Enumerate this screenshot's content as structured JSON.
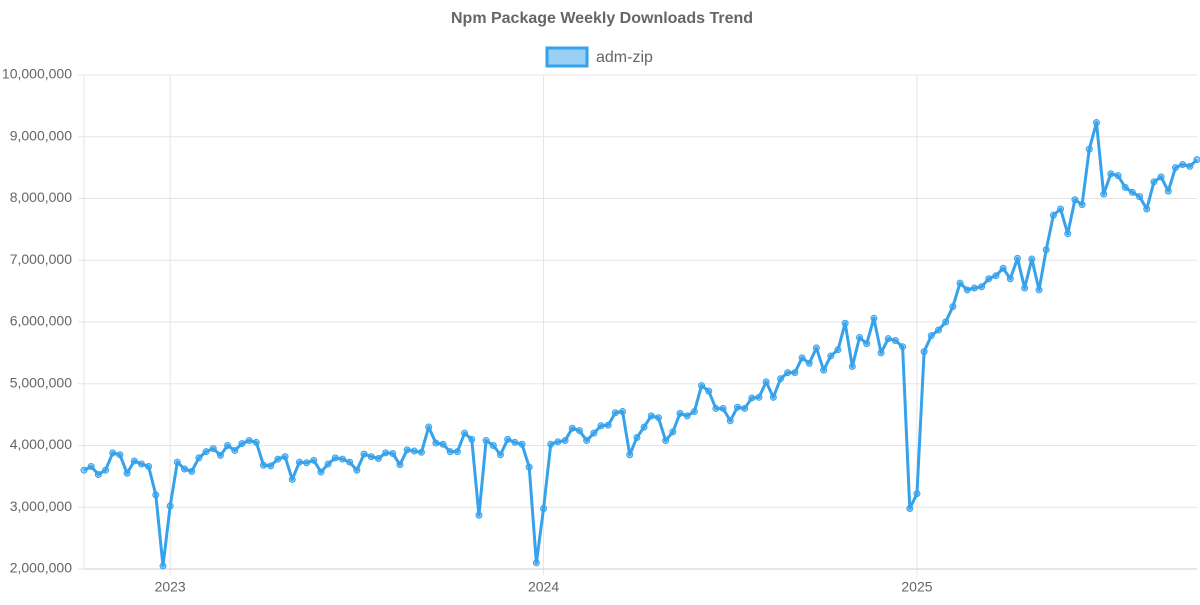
{
  "chart_data": {
    "type": "line",
    "title": "Npm Package Weekly Downloads Trend",
    "categories": [
      null,
      null,
      null,
      null,
      null,
      null,
      null,
      null,
      null,
      null,
      null,
      null,
      "2023",
      null,
      null,
      null,
      null,
      null,
      null,
      null,
      null,
      null,
      null,
      null,
      null,
      null,
      null,
      null,
      null,
      null,
      null,
      null,
      null,
      null,
      null,
      null,
      null,
      null,
      null,
      null,
      null,
      null,
      null,
      null,
      null,
      null,
      null,
      null,
      null,
      null,
      null,
      null,
      null,
      null,
      null,
      null,
      null,
      null,
      null,
      null,
      null,
      null,
      null,
      null,
      "2024",
      null,
      null,
      null,
      null,
      null,
      null,
      null,
      null,
      null,
      null,
      null,
      null,
      null,
      null,
      null,
      null,
      null,
      null,
      null,
      null,
      null,
      null,
      null,
      null,
      null,
      null,
      null,
      null,
      null,
      null,
      null,
      null,
      null,
      null,
      null,
      null,
      null,
      null,
      null,
      null,
      null,
      null,
      null,
      null,
      null,
      null,
      null,
      null,
      null,
      null,
      null,
      "2025",
      null,
      null,
      null,
      null,
      null,
      null,
      null,
      null,
      null,
      null,
      null,
      null,
      null,
      null,
      null,
      null,
      null,
      null,
      null,
      null,
      null,
      null,
      null,
      null,
      null,
      null,
      null,
      null,
      null,
      null,
      null,
      null,
      null,
      null,
      null,
      null,
      null,
      null,
      null
    ],
    "series": [
      {
        "name": "adm-zip",
        "color": "#36a2eb",
        "values": [
          3600000,
          3660000,
          3530000,
          3600000,
          3880000,
          3850000,
          3550000,
          3750000,
          3700000,
          3660000,
          3200000,
          2050000,
          3020000,
          3730000,
          3620000,
          3580000,
          3800000,
          3900000,
          3950000,
          3840000,
          4000000,
          3920000,
          4030000,
          4080000,
          4050000,
          3680000,
          3670000,
          3780000,
          3820000,
          3450000,
          3730000,
          3720000,
          3760000,
          3570000,
          3700000,
          3800000,
          3780000,
          3730000,
          3600000,
          3860000,
          3820000,
          3790000,
          3880000,
          3870000,
          3690000,
          3930000,
          3910000,
          3890000,
          4300000,
          4040000,
          4020000,
          3900000,
          3900000,
          4200000,
          4100000,
          2870000,
          4080000,
          4000000,
          3850000,
          4100000,
          4050000,
          4020000,
          3650000,
          2100000,
          2980000,
          4020000,
          4060000,
          4080000,
          4280000,
          4240000,
          4080000,
          4200000,
          4320000,
          4330000,
          4530000,
          4550000,
          3850000,
          4130000,
          4300000,
          4480000,
          4450000,
          4080000,
          4220000,
          4520000,
          4480000,
          4550000,
          4970000,
          4880000,
          4600000,
          4600000,
          4400000,
          4620000,
          4600000,
          4770000,
          4780000,
          5030000,
          4780000,
          5080000,
          5180000,
          5180000,
          5420000,
          5330000,
          5580000,
          5220000,
          5450000,
          5550000,
          5980000,
          5280000,
          5750000,
          5650000,
          6060000,
          5500000,
          5730000,
          5700000,
          5600000,
          2980000,
          3220000,
          5520000,
          5780000,
          5870000,
          6000000,
          6250000,
          6630000,
          6520000,
          6550000,
          6570000,
          6700000,
          6750000,
          6870000,
          6700000,
          7030000,
          6550000,
          7020000,
          6520000,
          7170000,
          7730000,
          7830000,
          7430000,
          7980000,
          7900000,
          8800000,
          9230000,
          8070000,
          8400000,
          8370000,
          8180000,
          8100000,
          8030000,
          7830000,
          8270000,
          8350000,
          8120000,
          8500000,
          8550000,
          8520000,
          8630000
        ]
      }
    ],
    "ylim": [
      2000000,
      10000000
    ],
    "yticks": [
      {
        "value": 2000000,
        "label": "2,000,000"
      },
      {
        "value": 3000000,
        "label": "3,000,000"
      },
      {
        "value": 4000000,
        "label": "4,000,000"
      },
      {
        "value": 5000000,
        "label": "5,000,000"
      },
      {
        "value": 6000000,
        "label": "6,000,000"
      },
      {
        "value": 7000000,
        "label": "7,000,000"
      },
      {
        "value": 8000000,
        "label": "8,000,000"
      },
      {
        "value": 9000000,
        "label": "9,000,000"
      },
      {
        "value": 10000000,
        "label": "10,000,000"
      }
    ],
    "grid": true,
    "legend": "top"
  }
}
